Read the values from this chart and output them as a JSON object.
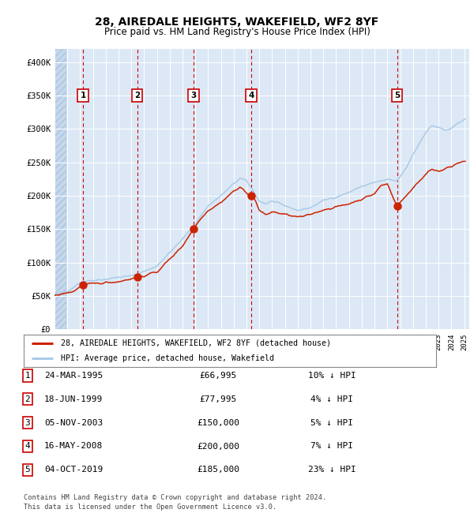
{
  "title1": "28, AIREDALE HEIGHTS, WAKEFIELD, WF2 8YF",
  "title2": "Price paid vs. HM Land Registry's House Price Index (HPI)",
  "hpi_color": "#aacbe8",
  "price_color": "#cc2200",
  "plot_bg": "#dce8f5",
  "sale_prices": [
    66995,
    77995,
    150000,
    200000,
    185000
  ],
  "sale_labels": [
    "1",
    "2",
    "3",
    "4",
    "5"
  ],
  "vline_color": "#cc0000",
  "legend_house": "28, AIREDALE HEIGHTS, WAKEFIELD, WF2 8YF (detached house)",
  "legend_hpi": "HPI: Average price, detached house, Wakefield",
  "table_rows": [
    [
      "1",
      "24-MAR-1995",
      "£66,995",
      "10% ↓ HPI"
    ],
    [
      "2",
      "18-JUN-1999",
      "£77,995",
      "4% ↓ HPI"
    ],
    [
      "3",
      "05-NOV-2003",
      "£150,000",
      "5% ↓ HPI"
    ],
    [
      "4",
      "16-MAY-2008",
      "£200,000",
      "7% ↓ HPI"
    ],
    [
      "5",
      "04-OCT-2019",
      "£185,000",
      "23% ↓ HPI"
    ]
  ],
  "footer": "Contains HM Land Registry data © Crown copyright and database right 2024.\nThis data is licensed under the Open Government Licence v3.0.",
  "ylim": [
    0,
    420000
  ],
  "yticks": [
    0,
    50000,
    100000,
    150000,
    200000,
    250000,
    300000,
    350000,
    400000
  ],
  "ylabel_fmt": [
    "£0",
    "£50K",
    "£100K",
    "£150K",
    "£200K",
    "£250K",
    "£300K",
    "£350K",
    "£400K"
  ]
}
